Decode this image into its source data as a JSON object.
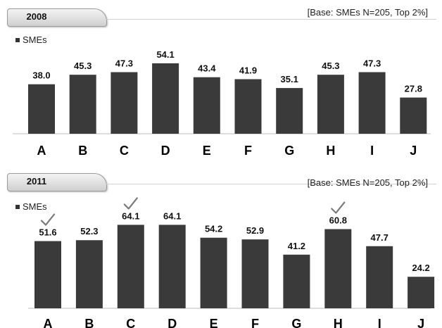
{
  "chart_data": [
    {
      "type": "bar",
      "title": "2008",
      "note": "[Base: SMEs N=205, Top 2%]",
      "categories": [
        "A",
        "B",
        "C",
        "D",
        "E",
        "F",
        "G",
        "H",
        "I",
        "J"
      ],
      "series": [
        {
          "name": "SMEs",
          "values": [
            38.0,
            45.3,
            47.3,
            54.1,
            43.4,
            41.9,
            35.1,
            45.3,
            47.3,
            27.8
          ]
        }
      ],
      "ylim": [
        0,
        75
      ],
      "color": "#3a3a3a"
    },
    {
      "type": "bar",
      "title": "2011",
      "note": "[Base: SMEs N=205, Top 2%]",
      "categories": [
        "A",
        "B",
        "C",
        "D",
        "E",
        "F",
        "G",
        "H",
        "I",
        "J"
      ],
      "series": [
        {
          "name": "SMEs",
          "values": [
            51.6,
            52.3,
            64.1,
            64.1,
            54.2,
            52.9,
            41.2,
            60.8,
            47.7,
            24.2
          ]
        }
      ],
      "checkmarks": [
        "A",
        "C",
        "H"
      ],
      "ylim": [
        0,
        75
      ],
      "color": "#3a3a3a"
    }
  ]
}
